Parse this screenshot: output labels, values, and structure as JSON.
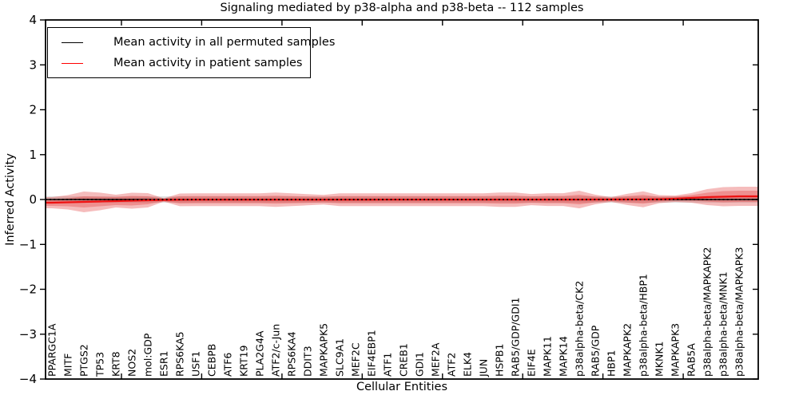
{
  "title": "Signaling mediated by p38-alpha and p38-beta -- 112 samples",
  "legend": {
    "items": [
      {
        "label": "Mean activity in all permuted samples",
        "color": "#000000"
      },
      {
        "label": "Mean activity in patient samples",
        "color": "#ff0000"
      }
    ]
  },
  "chart_data": {
    "type": "line",
    "title": "Signaling mediated by p38-alpha and p38-beta -- 112 samples",
    "xlabel": "Cellular Entities",
    "ylabel": "Inferred Activity",
    "ylim": [
      -4,
      4
    ],
    "yticks": [
      4,
      3,
      2,
      1,
      0,
      -1,
      -2,
      -3,
      -4
    ],
    "ytick_labels": [
      "4",
      "3",
      "2",
      "1",
      "0",
      "−1",
      "−2",
      "−3",
      "−4"
    ],
    "grid": false,
    "legend_position": "upper left",
    "categories": [
      "PPARGC1A",
      "MITF",
      "PTGS2",
      "TP53",
      "KRT8",
      "NOS2",
      "mol:GDP",
      "ESR1",
      "RPS6KA5",
      "USF1",
      "CEBPB",
      "ATF6",
      "KRT19",
      "PLA2G4A",
      "ATF2/c-Jun",
      "RPS6KA4",
      "DDIT3",
      "MAPKAPK5",
      "SLC9A1",
      "MEF2C",
      "EIF4EBP1",
      "ATF1",
      "CREB1",
      "GDI1",
      "MEF2A",
      "ATF2",
      "ELK4",
      "JUN",
      "HSPB1",
      "RAB5/GDP/GDI1",
      "EIF4E",
      "MAPK11",
      "MAPK14",
      "p38alpha-beta/CK2",
      "RAB5/GDP",
      "HBP1",
      "MAPKAPK2",
      "p38alpha-beta/HBP1",
      "MKNK1",
      "MAPKAPK3",
      "RAB5A",
      "p38alpha-beta/MAPKAPK2",
      "p38alpha-beta/MNK1",
      "p38alpha-beta/MAPKAPK3"
    ],
    "series": [
      {
        "name": "Mean activity in all permuted samples",
        "slug": "permuted-mean",
        "color": "#000000",
        "style": "solid",
        "values": [
          0,
          0,
          0,
          0,
          0,
          0,
          0,
          0,
          0,
          0,
          0,
          0,
          0,
          0,
          0,
          0,
          0,
          0,
          0,
          0,
          0,
          0,
          0,
          0,
          0,
          0,
          0,
          0,
          0,
          0,
          0,
          0,
          0,
          0,
          0,
          0,
          0,
          0,
          0,
          0,
          0,
          0,
          0,
          0
        ]
      },
      {
        "name": "Mean activity in patient samples",
        "slug": "patient-mean",
        "color": "#ee1111",
        "style": "solid",
        "values": [
          -0.071,
          -0.062,
          -0.053,
          -0.044,
          -0.036,
          -0.027,
          -0.018,
          -0.01,
          -0.008,
          -0.006,
          -0.006,
          -0.006,
          -0.006,
          -0.006,
          -0.006,
          -0.005,
          -0.005,
          -0.005,
          -0.005,
          -0.005,
          -0.005,
          -0.004,
          -0.004,
          -0.004,
          -0.004,
          -0.004,
          -0.003,
          -0.003,
          -0.003,
          -0.003,
          -0.002,
          -0.002,
          -0.002,
          -0.001,
          0.0,
          0.0,
          0.002,
          0.004,
          0.008,
          0.018,
          0.036,
          0.053,
          0.062,
          0.071
        ]
      },
      {
        "name": "zero reference",
        "slug": "zero-dotted",
        "color": "#000000",
        "style": "dotted",
        "values": [
          0,
          0,
          0,
          0,
          0,
          0,
          0,
          0,
          0,
          0,
          0,
          0,
          0,
          0,
          0,
          0,
          0,
          0,
          0,
          0,
          0,
          0,
          0,
          0,
          0,
          0,
          0,
          0,
          0,
          0,
          0,
          0,
          0,
          0,
          0,
          0,
          0,
          0,
          0,
          0,
          0,
          0,
          0,
          0
        ]
      }
    ],
    "bands": [
      {
        "name": "permuted-std",
        "color": "#d8d8d8",
        "alpha": 0.9,
        "center": "flat",
        "halfwidths": [
          0.07,
          0.07,
          0.07,
          0.07,
          0.07,
          0.07,
          0.07,
          0.07,
          0.07,
          0.07,
          0.07,
          0.07,
          0.07,
          0.07,
          0.07,
          0.07,
          0.07,
          0.07,
          0.07,
          0.07,
          0.07,
          0.07,
          0.07,
          0.07,
          0.07,
          0.07,
          0.07,
          0.07,
          0.07,
          0.07,
          0.07,
          0.07,
          0.07,
          0.07,
          0.07,
          0.07,
          0.07,
          0.07,
          0.07,
          0.07,
          0.07,
          0.07,
          0.07,
          0.07
        ]
      },
      {
        "name": "patient-std-outer",
        "color": "#e03535",
        "alpha": 0.33,
        "center": "patient",
        "halfwidths": [
          0.124,
          0.16,
          0.231,
          0.196,
          0.142,
          0.178,
          0.16,
          0.036,
          0.142,
          0.142,
          0.142,
          0.142,
          0.142,
          0.142,
          0.16,
          0.142,
          0.124,
          0.107,
          0.142,
          0.142,
          0.142,
          0.142,
          0.142,
          0.142,
          0.142,
          0.142,
          0.142,
          0.142,
          0.16,
          0.16,
          0.124,
          0.142,
          0.142,
          0.196,
          0.107,
          0.053,
          0.124,
          0.178,
          0.089,
          0.071,
          0.107,
          0.178,
          0.213,
          0.213
        ]
      },
      {
        "name": "patient-std-inner",
        "color": "#e03535",
        "alpha": 0.33,
        "center": "patient",
        "halfwidths": [
          0.071,
          0.089,
          0.124,
          0.107,
          0.089,
          0.107,
          0.089,
          0.027,
          0.08,
          0.08,
          0.08,
          0.08,
          0.08,
          0.08,
          0.089,
          0.08,
          0.071,
          0.062,
          0.08,
          0.08,
          0.08,
          0.08,
          0.08,
          0.08,
          0.08,
          0.08,
          0.08,
          0.08,
          0.089,
          0.089,
          0.071,
          0.08,
          0.08,
          0.107,
          0.062,
          0.036,
          0.071,
          0.098,
          0.053,
          0.044,
          0.062,
          0.098,
          0.124,
          0.124
        ]
      }
    ]
  }
}
